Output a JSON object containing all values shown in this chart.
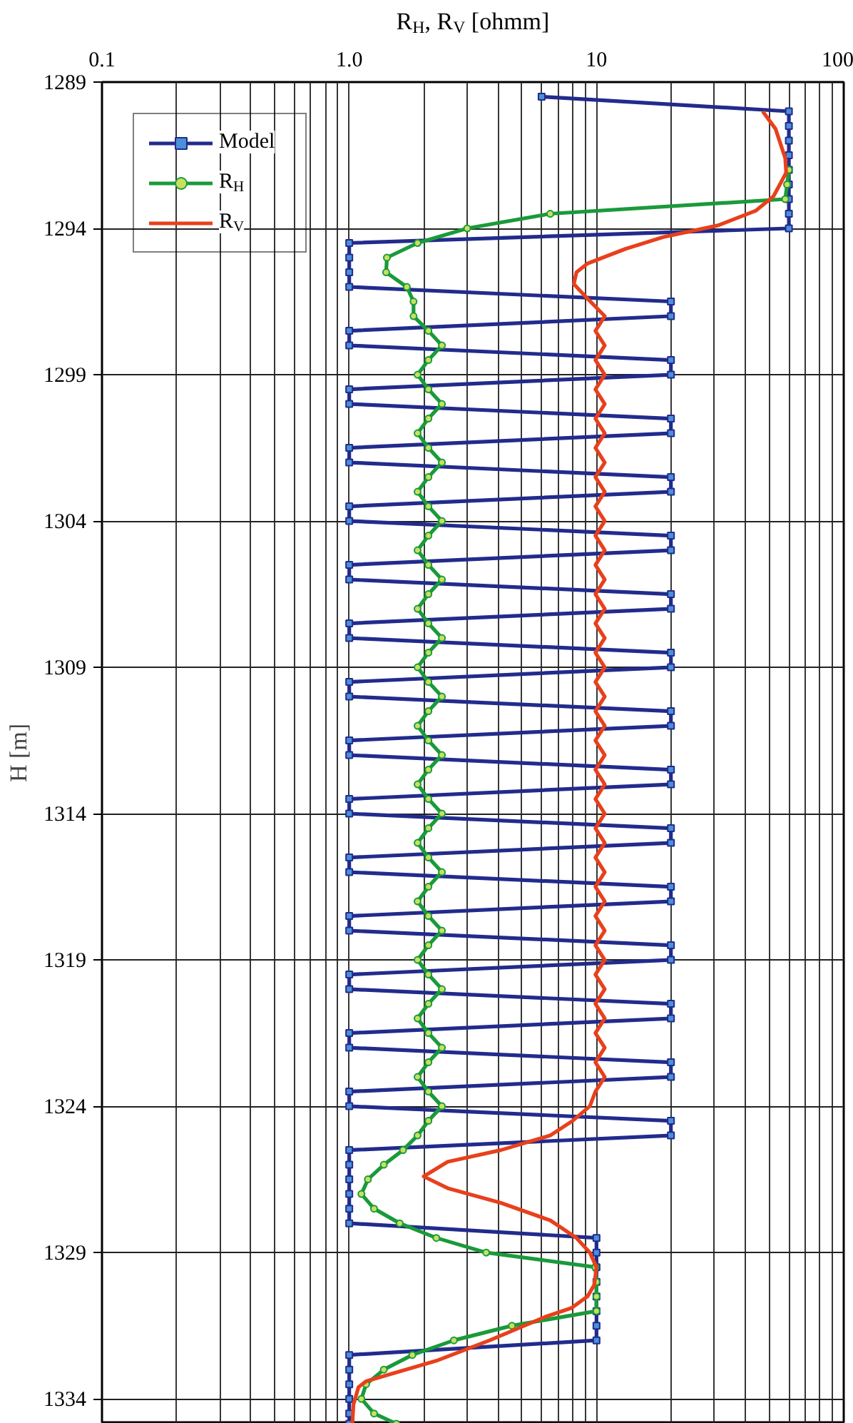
{
  "chart_data": {
    "type": "line",
    "xlabel": "R$_{H}$, R$_{V}$ [ohmm]",
    "ylabel": "H [m]",
    "log": "x",
    "grid": true,
    "legend": "top left",
    "xlim": [
      0.1,
      100
    ],
    "xticks": [
      {
        "value": 0.1,
        "label": "0.1"
      },
      {
        "value": 0.2,
        "label": null
      },
      {
        "value": 0.3,
        "label": null
      },
      {
        "value": 0.4,
        "label": null
      },
      {
        "value": 0.5,
        "label": null
      },
      {
        "value": 0.6,
        "label": null
      },
      {
        "value": 0.7,
        "label": null
      },
      {
        "value": 0.8,
        "label": null
      },
      {
        "value": 0.9,
        "label": null
      },
      {
        "value": 1,
        "label": "1.0"
      },
      {
        "value": 2,
        "label": null
      },
      {
        "value": 3,
        "label": null
      },
      {
        "value": 4,
        "label": null
      },
      {
        "value": 5,
        "label": null
      },
      {
        "value": 6,
        "label": null
      },
      {
        "value": 7,
        "label": null
      },
      {
        "value": 8,
        "label": null
      },
      {
        "value": 9,
        "label": null
      },
      10,
      {
        "value": 20,
        "label": null
      },
      {
        "value": 30,
        "label": null
      },
      {
        "value": 40,
        "label": null
      },
      {
        "value": 50,
        "label": null
      },
      {
        "value": 60,
        "label": null
      },
      {
        "value": 70,
        "label": null
      },
      {
        "value": 80,
        "label": null
      },
      {
        "value": 90,
        "label": null
      },
      100
    ],
    "ylim": [
      1334.85,
      1289
    ],
    "yticks": [
      1289,
      1294,
      1299,
      1304,
      1309,
      1314,
      1319,
      1324,
      1329,
      1334
    ],
    "series": [
      {
        "name": "Model",
        "color": "#222b8c",
        "marker": "square",
        "x": [
          6,
          60,
          60,
          60,
          60,
          60,
          60,
          60,
          60,
          60,
          1,
          1,
          1,
          1,
          20,
          20,
          1,
          1,
          20,
          20,
          1,
          1,
          20,
          20,
          1,
          1,
          20,
          20,
          1,
          1,
          20,
          20,
          1,
          1,
          20,
          20,
          1,
          1,
          20,
          20,
          1,
          1,
          20,
          20,
          1,
          1,
          20,
          20,
          1,
          1,
          20,
          20,
          1,
          1,
          20,
          20,
          1,
          1,
          20,
          20,
          1,
          1,
          20,
          20,
          1,
          1,
          20,
          20,
          1,
          1,
          20,
          20,
          1,
          1,
          1,
          1,
          1,
          1,
          10,
          10,
          10,
          10,
          10,
          10,
          10,
          10,
          1,
          1,
          1,
          1,
          1,
          1
        ],
        "values": [
          1289.5,
          1290,
          1290.5,
          1291,
          1291.5,
          1292,
          1292.5,
          1293,
          1293.5,
          1294,
          1294.5,
          1295,
          1295.5,
          1296,
          1296.5,
          1297,
          1297.5,
          1298,
          1298.5,
          1299,
          1299.5,
          1300,
          1300.5,
          1301,
          1301.5,
          1302,
          1302.5,
          1303,
          1303.5,
          1304,
          1304.5,
          1305,
          1305.5,
          1306,
          1306.5,
          1307,
          1307.5,
          1308,
          1308.5,
          1309,
          1309.5,
          1310,
          1310.5,
          1311,
          1311.5,
          1312,
          1312.5,
          1313,
          1313.5,
          1314,
          1314.5,
          1315,
          1315.5,
          1316,
          1316.5,
          1317,
          1317.5,
          1318,
          1318.5,
          1319,
          1319.5,
          1320,
          1320.5,
          1321,
          1321.5,
          1322,
          1322.5,
          1323,
          1323.5,
          1324,
          1324.5,
          1325,
          1325.5,
          1326,
          1326.5,
          1327,
          1327.5,
          1328,
          1328.5,
          1329,
          1329.5,
          1330,
          1330.5,
          1331,
          1331.5,
          1332,
          1332.5,
          1333,
          1333.5,
          1334,
          1334.5,
          1334.85
        ]
      },
      {
        "name": "R$_{H}$",
        "color": "#1a9a3a",
        "marker": "circle",
        "x": [
          60,
          59,
          58,
          6.5,
          3.0,
          1.89,
          1.42,
          1.41,
          1.71,
          1.82,
          1.82,
          2.09,
          2.37,
          2.09,
          1.89,
          2.09,
          2.37,
          2.09,
          1.89,
          2.09,
          2.37,
          2.09,
          1.89,
          2.09,
          2.37,
          2.09,
          1.89,
          2.09,
          2.37,
          2.09,
          1.89,
          2.09,
          2.37,
          2.09,
          1.89,
          2.09,
          2.37,
          2.09,
          1.89,
          2.09,
          2.37,
          2.09,
          1.89,
          2.09,
          2.37,
          2.09,
          1.89,
          2.09,
          2.37,
          2.09,
          1.89,
          2.09,
          2.37,
          2.09,
          1.89,
          2.09,
          2.37,
          2.09,
          1.89,
          2.09,
          2.37,
          2.09,
          1.89,
          2.09,
          2.37,
          2.09,
          1.89,
          1.65,
          1.38,
          1.19,
          1.12,
          1.26,
          1.6,
          2.25,
          3.58,
          9.9,
          10,
          10,
          10,
          4.55,
          2.65,
          1.8,
          1.38,
          1.17,
          1.12,
          1.26,
          1.55
        ],
        "values": [
          1292,
          1292.5,
          1293,
          1293.5,
          1294,
          1294.5,
          1295,
          1295.5,
          1296,
          1296.5,
          1297,
          1297.5,
          1298,
          1298.5,
          1299,
          1299.5,
          1300,
          1300.5,
          1301,
          1301.5,
          1302,
          1302.5,
          1303,
          1303.5,
          1304,
          1304.5,
          1305,
          1305.5,
          1306,
          1306.5,
          1307,
          1307.5,
          1308,
          1308.5,
          1309,
          1309.5,
          1310,
          1310.5,
          1311,
          1311.5,
          1312,
          1312.5,
          1313,
          1313.5,
          1314,
          1314.5,
          1315,
          1315.5,
          1316,
          1316.5,
          1317,
          1317.5,
          1318,
          1318.5,
          1319,
          1319.5,
          1320,
          1320.5,
          1321,
          1321.5,
          1322,
          1322.5,
          1323,
          1323.5,
          1324,
          1324.5,
          1325,
          1325.5,
          1326,
          1326.5,
          1327,
          1327.5,
          1328,
          1328.5,
          1329,
          1329.5,
          1330,
          1330.5,
          1331,
          1331.5,
          1332,
          1332.5,
          1333,
          1333.5,
          1334,
          1334.5,
          1334.85
        ]
      },
      {
        "name": "R$_{V}$",
        "color": "#e8401c",
        "marker": "none",
        "x": [
          47,
          53,
          58,
          58.5,
          52,
          44,
          31,
          18.6,
          13.1,
          9.2,
          8.3,
          8.1,
          9.2,
          10.8,
          9.9,
          10.8,
          9.9,
          10.8,
          9.9,
          10.8,
          9.9,
          10.8,
          9.9,
          10.8,
          9.9,
          10.8,
          9.9,
          10.8,
          9.9,
          10.8,
          9.9,
          10.8,
          9.9,
          10.8,
          9.9,
          10.8,
          9.9,
          10.8,
          9.9,
          10.8,
          9.9,
          10.8,
          9.9,
          10.8,
          9.9,
          10.8,
          9.9,
          10.8,
          9.9,
          10.8,
          9.9,
          10.8,
          9.9,
          10.8,
          9.9,
          10.8,
          9.9,
          10.8,
          9.9,
          10.8,
          9.9,
          10.8,
          9.9,
          10.8,
          9.9,
          10.8,
          9.9,
          9.4,
          8.0,
          6.5,
          4.1,
          2.5,
          2.0,
          2.5,
          4.1,
          6.5,
          8.3,
          9.4,
          10,
          9.8,
          9.2,
          7.9,
          6.2,
          3.7,
          2.25,
          1.17,
          1.09,
          1.04,
          1.03
        ],
        "values": [
          1290,
          1290.6,
          1291.6,
          1292.1,
          1292.9,
          1293.4,
          1293.9,
          1294.3,
          1294.7,
          1295.2,
          1295.5,
          1295.9,
          1296.4,
          1297,
          1297.5,
          1298,
          1298.5,
          1299,
          1299.5,
          1300,
          1300.5,
          1301,
          1301.5,
          1302,
          1302.5,
          1303,
          1303.5,
          1304,
          1304.5,
          1305,
          1305.5,
          1306,
          1306.5,
          1307,
          1307.5,
          1308,
          1308.5,
          1309,
          1309.5,
          1310,
          1310.5,
          1311,
          1311.5,
          1312,
          1312.5,
          1313,
          1313.5,
          1314,
          1314.5,
          1315,
          1315.5,
          1316,
          1316.5,
          1317,
          1317.5,
          1318,
          1318.5,
          1319,
          1319.5,
          1320,
          1320.5,
          1321,
          1321.5,
          1322,
          1322.5,
          1323,
          1323.5,
          1324,
          1324.5,
          1325,
          1325.5,
          1325.9,
          1326.4,
          1326.8,
          1327.3,
          1327.9,
          1328.5,
          1329,
          1329.5,
          1330.1,
          1330.5,
          1330.9,
          1331.2,
          1332,
          1332.7,
          1333.4,
          1333.6,
          1334.2,
          1334.85
        ]
      }
    ]
  }
}
